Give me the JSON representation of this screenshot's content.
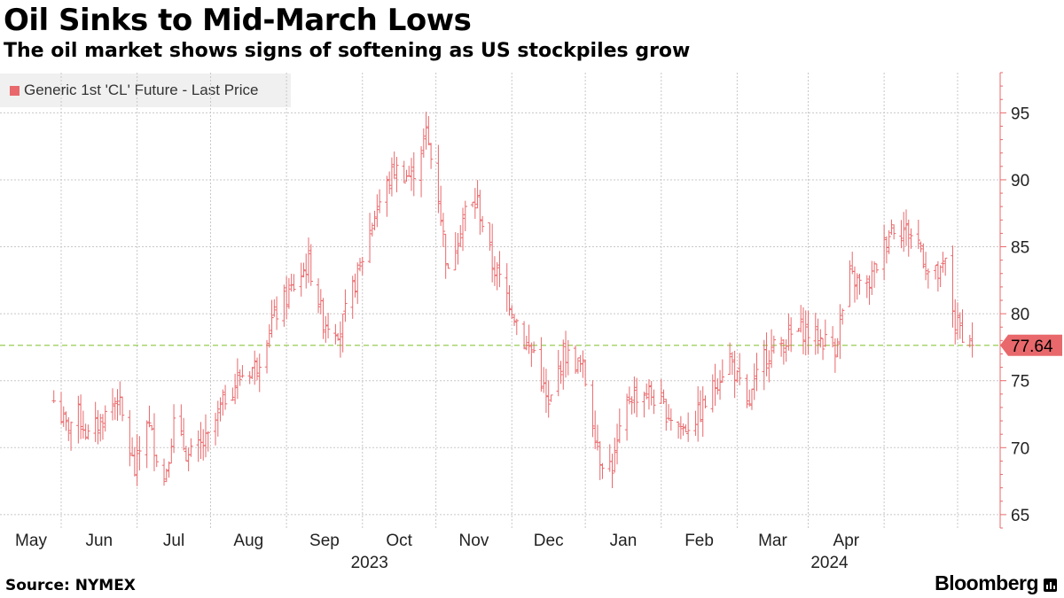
{
  "title": "Oil Sinks to Mid-March Lows",
  "subtitle": "The oil market shows signs of softening as US stockpiles grow",
  "source": "Source: NYMEX",
  "brand": "Bloomberg",
  "colors": {
    "series": "#e8686b",
    "reference_line": "#8cc63f",
    "grid": "#c8c8c8",
    "axis": "#e8686b"
  },
  "chart_data": {
    "type": "bar",
    "style": "ohlc-daily",
    "title": "Oil Sinks to Mid-March Lows",
    "subtitle": "The oil market shows signs of softening as US stockpiles grow",
    "series": [
      {
        "name": "Generic 1st 'CL' Future - Last Price",
        "last_value": 77.64
      }
    ],
    "last_value_label": "77.64",
    "y_axis": {
      "position": "right",
      "range": [
        64,
        98
      ],
      "ticks": [
        65,
        70,
        75,
        80,
        85,
        90,
        95
      ]
    },
    "x_axis": {
      "months": [
        "May",
        "Jun",
        "Jul",
        "Aug",
        "Sep",
        "Oct",
        "Nov",
        "Dec",
        "Jan",
        "Feb",
        "Mar",
        "Apr"
      ],
      "years": [
        "2023",
        "2024"
      ],
      "range": [
        "2023-04-28",
        "2024-04-30"
      ]
    },
    "grid": true,
    "legend": "top-left",
    "anchors": [
      [
        "2023-04-28",
        73.5
      ],
      [
        "2023-05-03",
        71.5
      ],
      [
        "2023-05-08",
        72.5
      ],
      [
        "2023-05-12",
        70.8
      ],
      [
        "2023-05-18",
        72.2
      ],
      [
        "2023-05-24",
        73.8
      ],
      [
        "2023-05-31",
        68.2
      ],
      [
        "2023-06-05",
        72.2
      ],
      [
        "2023-06-12",
        67.5
      ],
      [
        "2023-06-16",
        71.8
      ],
      [
        "2023-06-22",
        69.3
      ],
      [
        "2023-06-30",
        70.6
      ],
      [
        "2023-07-07",
        73.8
      ],
      [
        "2023-07-14",
        75.5
      ],
      [
        "2023-07-20",
        76.2
      ],
      [
        "2023-07-26",
        79.5
      ],
      [
        "2023-08-03",
        81.8
      ],
      [
        "2023-08-10",
        83.8
      ],
      [
        "2023-08-16",
        79.5
      ],
      [
        "2023-08-23",
        78.8
      ],
      [
        "2023-08-31",
        83.5
      ],
      [
        "2023-09-06",
        87.5
      ],
      [
        "2023-09-14",
        90.8
      ],
      [
        "2023-09-21",
        90.2
      ],
      [
        "2023-09-27",
        93.5
      ],
      [
        "2023-10-02",
        88.8
      ],
      [
        "2023-10-06",
        82.8
      ],
      [
        "2023-10-10",
        86.0
      ],
      [
        "2023-10-13",
        87.7
      ],
      [
        "2023-10-18",
        88.3
      ],
      [
        "2023-10-24",
        83.7
      ],
      [
        "2023-10-31",
        81.0
      ],
      [
        "2023-11-07",
        77.5
      ],
      [
        "2023-11-10",
        77.2
      ],
      [
        "2023-11-16",
        72.9
      ],
      [
        "2023-11-22",
        77.1
      ],
      [
        "2023-11-30",
        75.9
      ],
      [
        "2023-12-07",
        69.3
      ],
      [
        "2023-12-12",
        68.6
      ],
      [
        "2023-12-19",
        73.9
      ],
      [
        "2023-12-27",
        74.1
      ],
      [
        "2024-01-03",
        72.7
      ],
      [
        "2024-01-10",
        71.4
      ],
      [
        "2024-01-17",
        72.6
      ],
      [
        "2024-01-24",
        75.1
      ],
      [
        "2024-01-29",
        76.8
      ],
      [
        "2024-02-05",
        72.8
      ],
      [
        "2024-02-12",
        76.9
      ],
      [
        "2024-02-20",
        77.9
      ],
      [
        "2024-02-27",
        78.9
      ],
      [
        "2024-03-05",
        78.2
      ],
      [
        "2024-03-12",
        77.6
      ],
      [
        "2024-03-18",
        82.7
      ],
      [
        "2024-03-25",
        81.9
      ],
      [
        "2024-03-28",
        83.2
      ],
      [
        "2024-04-04",
        86.6
      ],
      [
        "2024-04-10",
        86.2
      ],
      [
        "2024-04-15",
        85.4
      ],
      [
        "2024-04-19",
        83.1
      ],
      [
        "2024-04-24",
        82.8
      ],
      [
        "2024-04-26",
        83.8
      ],
      [
        "2024-04-30",
        79.2
      ],
      [
        "2024-05-02",
        78.9
      ],
      [
        "2024-05-07",
        77.64
      ]
    ]
  }
}
